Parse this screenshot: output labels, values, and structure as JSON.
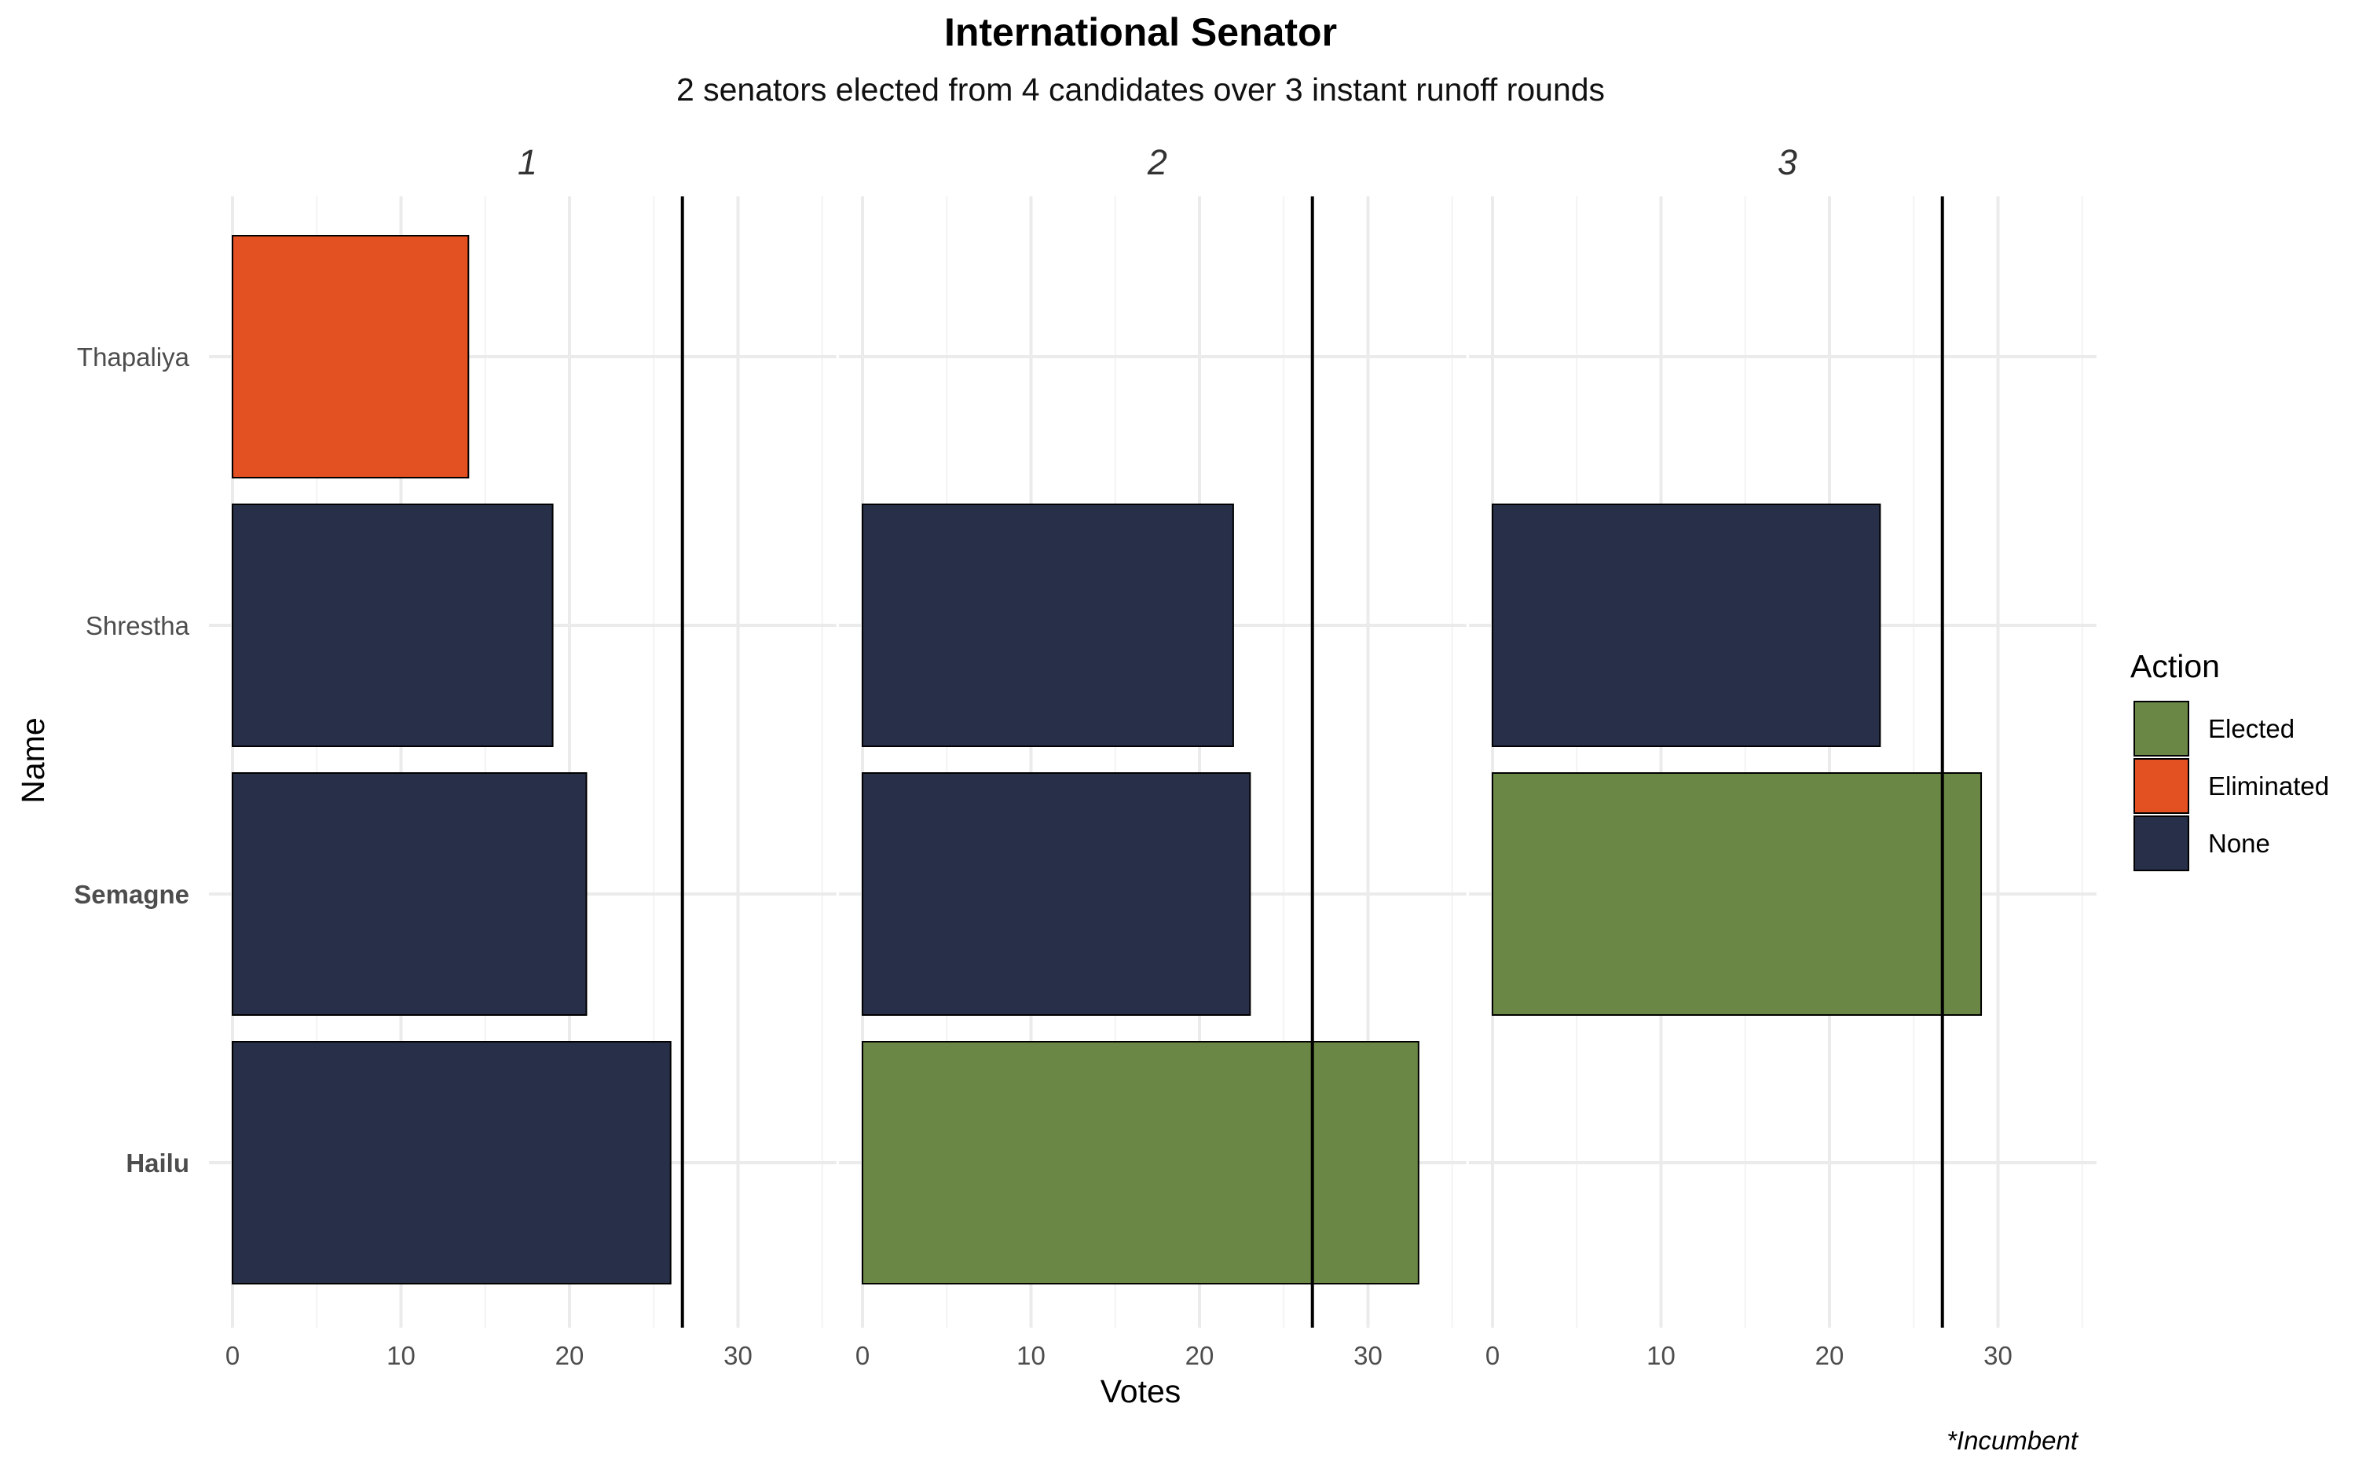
{
  "chart_data": {
    "type": "bar",
    "orientation": "horizontal",
    "title": "International Senator",
    "subtitle": "2 senators elected from 4 candidates over 3 instant runoff rounds",
    "xlabel": "Votes",
    "ylabel": "Name",
    "caption": "*Incumbent",
    "xlim": [
      0,
      35
    ],
    "x_ticks": [
      "0",
      "10",
      "20",
      "30"
    ],
    "grid": true,
    "threshold": 26.7,
    "categories": [
      "Thapaliya",
      "Shrestha",
      "Semagne",
      "Hailu"
    ],
    "bold_categories": [
      "Semagne",
      "Hailu"
    ],
    "panels": [
      {
        "label": "1",
        "bars": [
          {
            "name": "Thapaliya",
            "value": 14,
            "action": "Eliminated"
          },
          {
            "name": "Shrestha",
            "value": 19,
            "action": "None"
          },
          {
            "name": "Semagne",
            "value": 21,
            "action": "None"
          },
          {
            "name": "Hailu",
            "value": 26,
            "action": "None"
          }
        ]
      },
      {
        "label": "2",
        "bars": [
          {
            "name": "Thapaliya",
            "value": 0,
            "action": "None"
          },
          {
            "name": "Shrestha",
            "value": 22,
            "action": "None"
          },
          {
            "name": "Semagne",
            "value": 23,
            "action": "None"
          },
          {
            "name": "Hailu",
            "value": 33,
            "action": "Elected"
          }
        ]
      },
      {
        "label": "3",
        "bars": [
          {
            "name": "Thapaliya",
            "value": 0,
            "action": "None"
          },
          {
            "name": "Shrestha",
            "value": 23,
            "action": "None"
          },
          {
            "name": "Semagne",
            "value": 29,
            "action": "Elected"
          },
          {
            "name": "Hailu",
            "value": 0,
            "action": "None"
          }
        ]
      }
    ],
    "legend": {
      "title": "Action",
      "placement": "right",
      "entries": [
        {
          "label": "Elected",
          "color": "#6b8745"
        },
        {
          "label": "Eliminated",
          "color": "#e35022"
        },
        {
          "label": "None",
          "color": "#283049"
        }
      ]
    }
  }
}
